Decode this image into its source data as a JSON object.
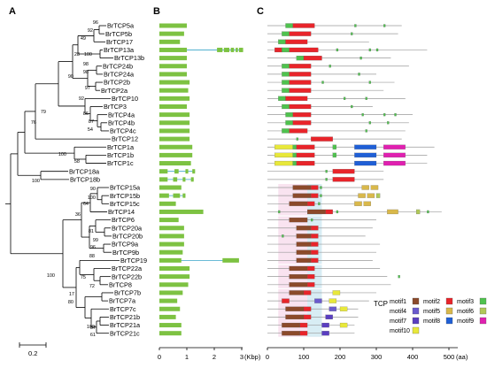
{
  "panels": {
    "a": "A",
    "b": "B",
    "c": "C"
  },
  "scale_bar_label": "0.2",
  "taxa": [
    "BrTCP5a",
    "BrTCP5b",
    "BrTCP17",
    "BrTCP13a",
    "BrTCP13b",
    "BrTCP24b",
    "BrTCP24a",
    "BrTCP2b",
    "BrTCP2a",
    "BrTCP10",
    "BrTCP3",
    "BrTCP4a",
    "BrTCP4b",
    "BrTCP4c",
    "BrTCP12",
    "BrTCP1a",
    "BrTCP1b",
    "BrTCP1c",
    "BrTCP18a",
    "BrTCP18b",
    "BrTCP15a",
    "BrTCP15b",
    "BrTCP15c",
    "BrTCP14",
    "BrTCP6",
    "BrTCP20a",
    "BrTCP20b",
    "BrTCP9a",
    "BrTCP9b",
    "BrTCP19",
    "BrTCP22a",
    "BrTCP22b",
    "BrTCP8",
    "BrTCP7b",
    "BrTCP7a",
    "BrTCP7c",
    "BrTCP21b",
    "BrTCP21a",
    "BrTCP21c"
  ],
  "bootstrap": [
    "96",
    "92",
    "49",
    "28",
    "100",
    "98",
    "98",
    "90",
    "97",
    "92",
    "86",
    "87",
    "54",
    "79",
    "76",
    "100",
    "58",
    "100",
    "90",
    "100",
    "64",
    "36",
    "81",
    "99",
    "96",
    "88",
    "100",
    "72",
    "17",
    "75",
    "80",
    "100",
    "61",
    "57"
  ],
  "panel_b_axis": {
    "ticks": [
      "0",
      "1",
      "2",
      "3"
    ],
    "unit": "(Kbp)"
  },
  "panel_c_axis": {
    "ticks": [
      "0",
      "100",
      "200",
      "300",
      "400",
      "500"
    ],
    "unit": "(aa)"
  },
  "legend": {
    "title": "TCP",
    "motifs": [
      {
        "label": "motif1",
        "color": "#8B4A2B"
      },
      {
        "label": "motif2",
        "color": "#E8242A"
      },
      {
        "label": "motif3",
        "color": "#4FC24E"
      },
      {
        "label": "motif4",
        "color": "#6A5ACD"
      },
      {
        "label": "motif5",
        "color": "#D9B84A"
      },
      {
        "label": "motif6",
        "color": "#B0C858"
      },
      {
        "label": "motif7",
        "color": "#5A3FC0"
      },
      {
        "label": "motif8",
        "color": "#1F5FD6"
      },
      {
        "label": "motif9",
        "color": "#E020B0"
      },
      {
        "label": "motif10",
        "color": "#E8E83A"
      }
    ]
  },
  "colors": {
    "exon": "#7DC242",
    "intron": "#3AA6C8",
    "tcp_red": "#E8242A",
    "tcp_green": "#4FC24E",
    "line": "#9A9A9A"
  }
}
